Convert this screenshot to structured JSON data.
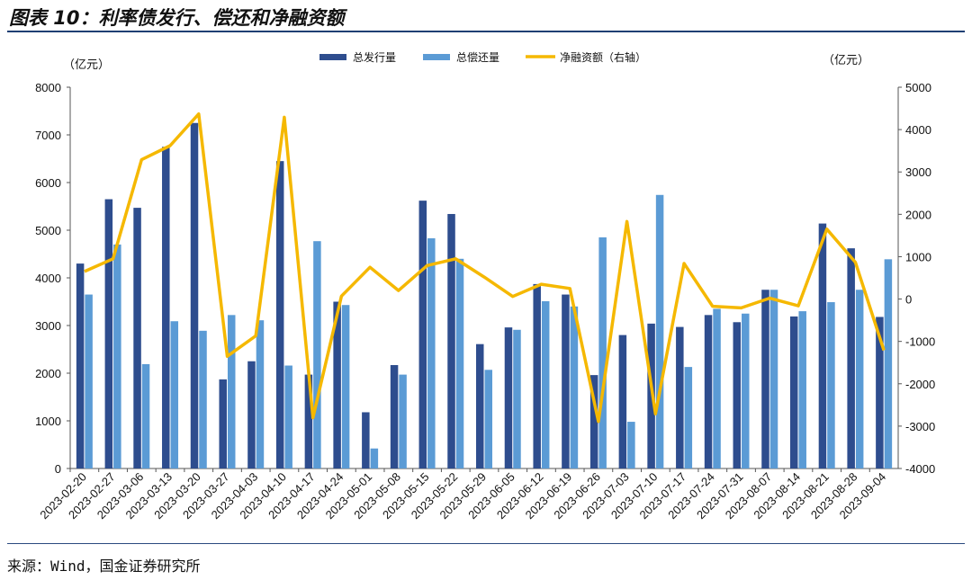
{
  "header": {
    "title": "图表 10：利率债发行、偿还和净融资额"
  },
  "footer": {
    "source": "来源：Wind，国金证券研究所"
  },
  "colors": {
    "issuance": "#2e4d8e",
    "repayment": "#5b9bd5",
    "net": "#f5b800",
    "rule": "#1f3f73"
  },
  "chart_data": {
    "type": "bar",
    "title": "",
    "left_unit": "（亿元）",
    "right_unit": "（亿元）",
    "legend_position": "top-center",
    "grid": false,
    "ylim_left": [
      0,
      8000
    ],
    "ylim_right": [
      -4000,
      5000
    ],
    "yticks_left": [
      "0",
      "1000",
      "2000",
      "3000",
      "4000",
      "5000",
      "6000",
      "7000",
      "8000"
    ],
    "yticks_right": [
      "-4000",
      "-3000",
      "-2000",
      "-1000",
      "0",
      "1000",
      "2000",
      "3000",
      "4000",
      "5000"
    ],
    "categories": [
      "2023-02-20",
      "2023-02-27",
      "2023-03-06",
      "2023-03-13",
      "2023-03-20",
      "2023-03-27",
      "2023-04-03",
      "2023-04-10",
      "2023-04-17",
      "2023-04-24",
      "2023-05-01",
      "2023-05-08",
      "2023-05-15",
      "2023-05-22",
      "2023-05-29",
      "2023-06-05",
      "2023-06-12",
      "2023-06-19",
      "2023-06-26",
      "2023-07-03",
      "2023-07-10",
      "2023-07-17",
      "2023-07-24",
      "2023-07-31",
      "2023-08-07",
      "2023-08-14",
      "2023-08-21",
      "2023-08-28",
      "2023-09-04"
    ],
    "series": [
      {
        "name": "总发行量",
        "type": "bar",
        "axis": "left",
        "values": [
          4300,
          5650,
          5470,
          6750,
          7250,
          1870,
          2250,
          6450,
          1970,
          3500,
          1180,
          2170,
          5620,
          5340,
          2610,
          2960,
          3870,
          3650,
          1960,
          2800,
          3040,
          2970,
          3220,
          3070,
          3750,
          3190,
          5140,
          4620,
          3180
        ]
      },
      {
        "name": "总偿还量",
        "type": "bar",
        "axis": "left",
        "values": [
          3650,
          4700,
          2190,
          3090,
          2890,
          3220,
          3110,
          2160,
          4770,
          3430,
          420,
          1970,
          4830,
          4400,
          2070,
          2910,
          3510,
          3400,
          4850,
          980,
          5740,
          2130,
          3350,
          3250,
          3750,
          3300,
          3490,
          3750,
          4390
        ]
      },
      {
        "name": "净融资额（右轴）",
        "type": "line",
        "axis": "right",
        "values": [
          650,
          950,
          3290,
          3620,
          4370,
          -1350,
          -870,
          4290,
          -2800,
          70,
          750,
          200,
          790,
          950,
          520,
          60,
          350,
          250,
          -2890,
          1830,
          -2710,
          840,
          -170,
          -210,
          20,
          -160,
          1650,
          870,
          -1210
        ]
      }
    ]
  }
}
